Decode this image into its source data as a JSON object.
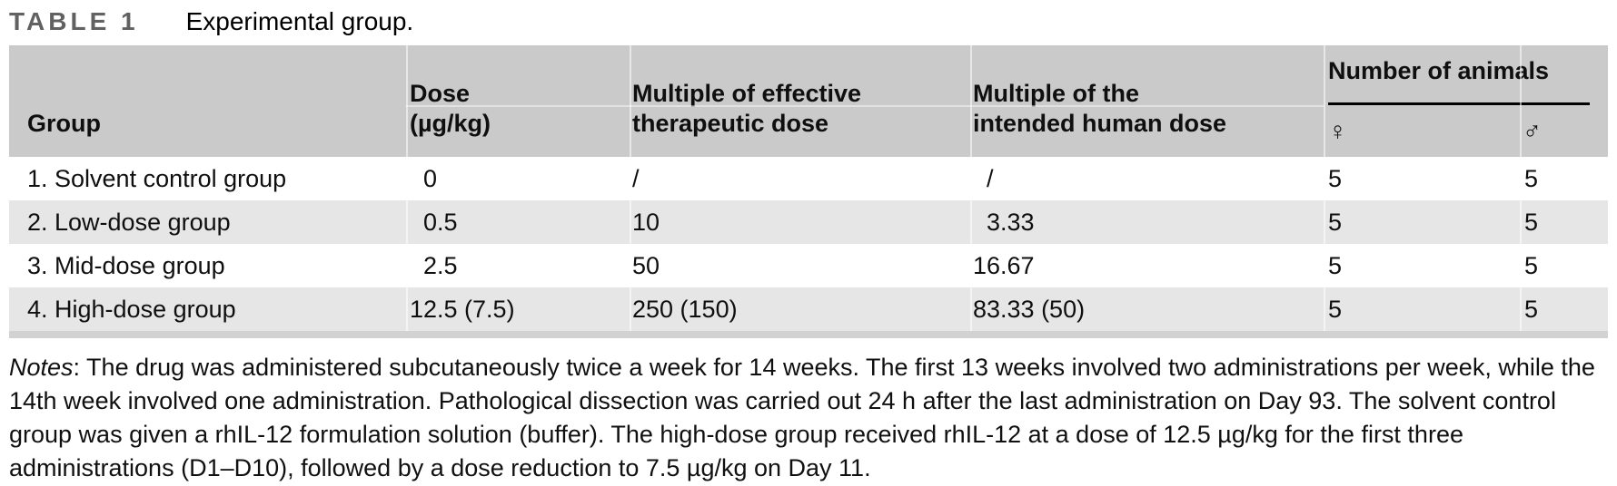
{
  "title": {
    "label": "TABLE 1",
    "caption": "Experimental group."
  },
  "table": {
    "header": {
      "group": "Group",
      "dose_line1": "Dose",
      "dose_line2": "(µg/kg)",
      "effective_line1": "Multiple of effective",
      "effective_line2": "therapeutic dose",
      "human_line1": "Multiple of the",
      "human_line2": "intended human dose",
      "animals": "Number of animals",
      "female_symbol": "♀",
      "male_symbol": "♂"
    },
    "rows": [
      {
        "group": "1. Solvent control group",
        "dose": " 0",
        "effective": "/",
        "human": " /",
        "female": "5",
        "male": "5"
      },
      {
        "group": "2. Low-dose group",
        "dose": " 0.5",
        "effective": "10",
        "human": " 3.33",
        "female": "5",
        "male": "5"
      },
      {
        "group": "3. Mid-dose group",
        "dose": " 2.5",
        "effective": "50",
        "human": "16.67",
        "female": "5",
        "male": "5"
      },
      {
        "group": "4. High-dose group",
        "dose": "12.5 (7.5)",
        "effective": "250 (150)",
        "human": "83.33 (50)",
        "female": "5",
        "male": "5"
      }
    ]
  },
  "notes": {
    "label": "Notes",
    "text": ": The drug was administered subcutaneously twice a week for 14 weeks. The first 13 weeks involved two administrations per week, while the 14th week involved one administration. Pathological dissection was carried out 24 h after the last administration on Day 93. The solvent control group was given a rhIL-12 formulation solution (buffer). The high-dose group received rhIL-12 at a dose of 12.5 µg/kg for the first three administrations (D1–D10), followed by a dose reduction to 7.5 µg/kg on Day 11."
  },
  "colors": {
    "header_bg": "#cacaca",
    "row_alt_bg": "#e6e6e6",
    "bottom_rule": "#d2d2d2",
    "table_label_gray": "#616161"
  }
}
